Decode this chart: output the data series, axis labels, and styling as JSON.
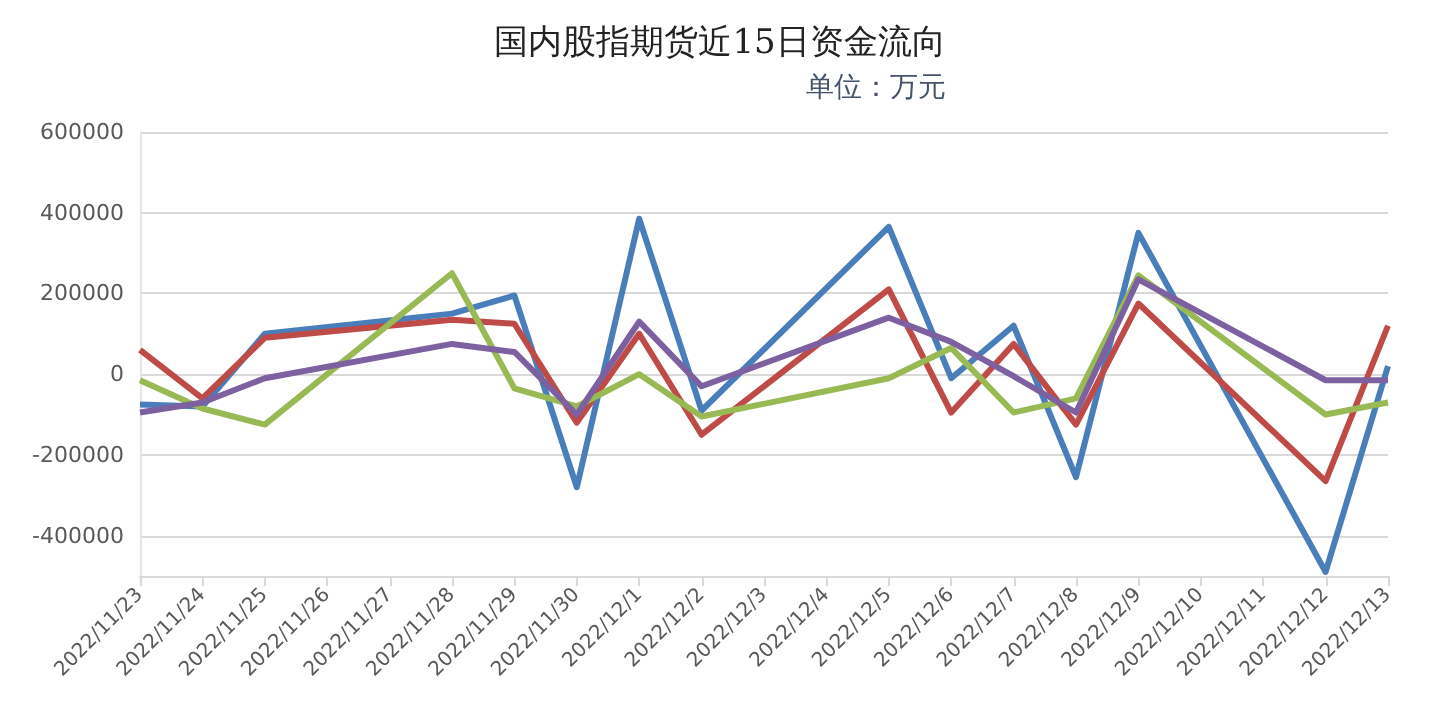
{
  "chart_data": {
    "type": "line",
    "title": "国内股指期货近15日资金流向",
    "subtitle": "单位：万元",
    "categories": [
      "2022/11/23",
      "2022/11/24",
      "2022/11/25",
      "2022/11/26",
      "2022/11/27",
      "2022/11/28",
      "2022/11/29",
      "2022/11/30",
      "2022/12/1",
      "2022/12/2",
      "2022/12/3",
      "2022/12/4",
      "2022/12/5",
      "2022/12/6",
      "2022/12/7",
      "2022/12/8",
      "2022/12/9",
      "2022/12/10",
      "2022/12/11",
      "2022/12/12",
      "2022/12/13"
    ],
    "series": [
      {
        "color": "#4a7ebb",
        "values": [
          -75000,
          -80000,
          100000,
          null,
          null,
          150000,
          195000,
          -280000,
          385000,
          -90000,
          null,
          null,
          365000,
          -10000,
          120000,
          -255000,
          350000,
          null,
          null,
          -490000,
          20000
        ]
      },
      {
        "color": "#be4b48",
        "values": [
          60000,
          -60000,
          90000,
          null,
          null,
          135000,
          125000,
          -120000,
          100000,
          -150000,
          null,
          null,
          210000,
          -95000,
          75000,
          -125000,
          175000,
          null,
          null,
          -265000,
          120000
        ]
      },
      {
        "color": "#98b954",
        "values": [
          -15000,
          -85000,
          -125000,
          null,
          null,
          250000,
          -35000,
          -80000,
          0,
          -105000,
          null,
          null,
          -10000,
          65000,
          -95000,
          -60000,
          245000,
          null,
          null,
          -100000,
          -70000
        ]
      },
      {
        "color": "#7d60a0",
        "values": [
          -95000,
          -70000,
          -10000,
          null,
          null,
          75000,
          55000,
          -100000,
          130000,
          -30000,
          null,
          null,
          140000,
          80000,
          -5000,
          -95000,
          235000,
          null,
          null,
          -15000,
          -15000
        ]
      }
    ],
    "ylim": [
      -500000,
      600000
    ],
    "yticks": [
      -400000,
      -200000,
      0,
      200000,
      400000,
      600000
    ],
    "grid": "y",
    "marker": "none",
    "line_style": "solid"
  }
}
